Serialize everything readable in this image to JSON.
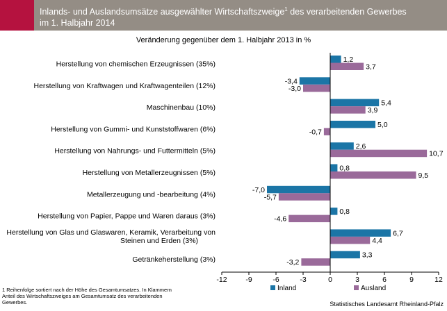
{
  "header": {
    "title_line1": "Inlands- und Auslandsumsätze ausgewählter Wirtschaftszweige",
    "title_sup": "1",
    "title_line1_rest": " des verarbeitenden Gewerbes",
    "title_line2": "im 1. Halbjahr 2014",
    "accent_color": "#b5123f",
    "bar_color": "#948d85"
  },
  "chart_data": {
    "type": "bar",
    "orientation": "horizontal",
    "title": "Inlands- und Auslandsumsätze ausgewählter Wirtschaftszweige1 des verarbeitenden Gewerbes im 1. Halbjahr 2014",
    "subtitle": "Veränderung gegenüber dem 1. Halbjahr 2013  in %",
    "categories": [
      [
        "Herstellung von chemischen Erzeugnissen (35%)"
      ],
      [
        "Herstellung von Kraftwagen und Kraftwagenteilen (12%)"
      ],
      [
        "Maschinenbau (10%)"
      ],
      [
        "Herstellung von Gummi- und Kunststoffwaren (6%)"
      ],
      [
        "Herstellung von Nahrungs- und Futtermitteln (5%)"
      ],
      [
        "Herstellung von Metallerzeugnissen (5%)"
      ],
      [
        "Metallerzeugung und -bearbeitung (4%)"
      ],
      [
        "Herstellung von Papier, Pappe und Waren daraus (3%)"
      ],
      [
        "Herstellung von Glas und Glaswaren, Keramik, Verarbeitung von",
        "Steinen und Erden (3%)"
      ],
      [
        "Getränkeherstellung (3%)"
      ]
    ],
    "series": [
      {
        "name": "Inland",
        "color": "#1b75a6",
        "values": [
          1.2,
          -3.4,
          5.4,
          5.0,
          2.6,
          0.8,
          -7.0,
          0.8,
          6.7,
          3.3
        ],
        "labels": [
          "1,2",
          "-3,4",
          "5,4",
          "5,0",
          "2,6",
          "0,8",
          "-7,0",
          "0,8",
          "6,7",
          "3,3"
        ]
      },
      {
        "name": "Ausland",
        "color": "#9a6a9a",
        "values": [
          3.7,
          -3.0,
          3.9,
          -0.7,
          10.7,
          9.5,
          -5.7,
          -4.6,
          4.4,
          -3.2
        ],
        "labels": [
          "3,7",
          "-3,0",
          "3,9",
          "-0,7",
          "10,7",
          "9,5",
          "-5,7",
          "-4,6",
          "4,4",
          "-3,2"
        ]
      }
    ],
    "xlim": [
      -12,
      12
    ],
    "xticks": [
      -12,
      -9,
      -6,
      -3,
      0,
      3,
      6,
      9,
      12
    ],
    "xtick_labels": [
      "-12",
      "-9",
      "-6",
      "-3",
      "0",
      "3",
      "6",
      "9",
      "12"
    ],
    "grid": false,
    "legend_position": "bottom"
  },
  "footnote": "1 Reihenfolge sortiert nach der Höhe des Gesamtumsatzes. In Klammern Anteil des Wirtschaftszweiges am Gesamtumsatz des verarbeitenden Gewerbes.",
  "source": "Statistisches Landesamt Rheinland-Pfalz"
}
